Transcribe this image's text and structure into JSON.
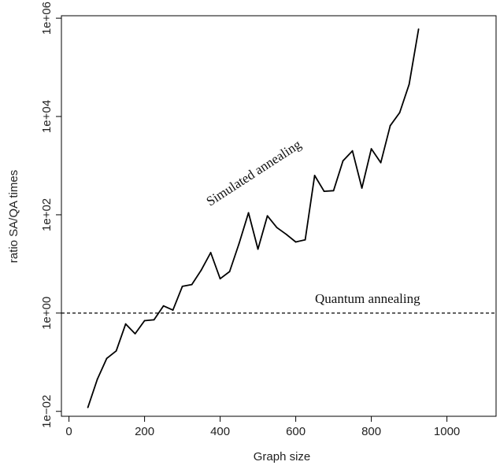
{
  "chart_data": {
    "type": "line",
    "xlabel": "Graph size",
    "ylabel": "ratio  SA/QA times",
    "xlim": [
      -20,
      1130
    ],
    "ylim_log10": [
      -2.1,
      6.05
    ],
    "y_scale": "log",
    "x_ticks": [
      0,
      200,
      400,
      600,
      800,
      1000
    ],
    "x_tick_labels": [
      "0",
      "200",
      "400",
      "600",
      "800",
      "1000"
    ],
    "y_ticks": [
      0.01,
      1,
      100,
      10000,
      1000000
    ],
    "y_tick_labels": [
      "1e−02",
      "1e+00",
      "1e+02",
      "1e+04",
      "1e+06"
    ],
    "grid": false,
    "series": [
      {
        "name": "Simulated annealing",
        "style": "solid",
        "color": "#000000",
        "x": [
          50,
          75,
          100,
          125,
          150,
          175,
          200,
          225,
          250,
          275,
          300,
          325,
          350,
          375,
          400,
          425,
          450,
          475,
          500,
          525,
          550,
          575,
          600,
          625,
          650,
          675,
          700,
          725,
          750,
          775,
          800,
          825,
          850,
          875,
          900,
          925
        ],
        "y": [
          0.012,
          0.045,
          0.12,
          0.17,
          0.6,
          0.38,
          0.7,
          0.73,
          1.4,
          1.15,
          3.5,
          3.8,
          7.5,
          17,
          5,
          7,
          26,
          110,
          20,
          95,
          55,
          40,
          28,
          31,
          630,
          300,
          310,
          1250,
          2000,
          350,
          2200,
          1150,
          6500,
          12000,
          45000,
          600000
        ]
      },
      {
        "name": "Quantum annealing",
        "style": "dashed",
        "color": "#000000",
        "y_constant": 1
      }
    ],
    "annotations": [
      {
        "text": "Simulated annealing",
        "x": 495,
        "y": 600,
        "rotation_deg": -33
      },
      {
        "text": "Quantum annealing",
        "x": 790,
        "y": 1.6,
        "rotation_deg": 0
      }
    ]
  }
}
